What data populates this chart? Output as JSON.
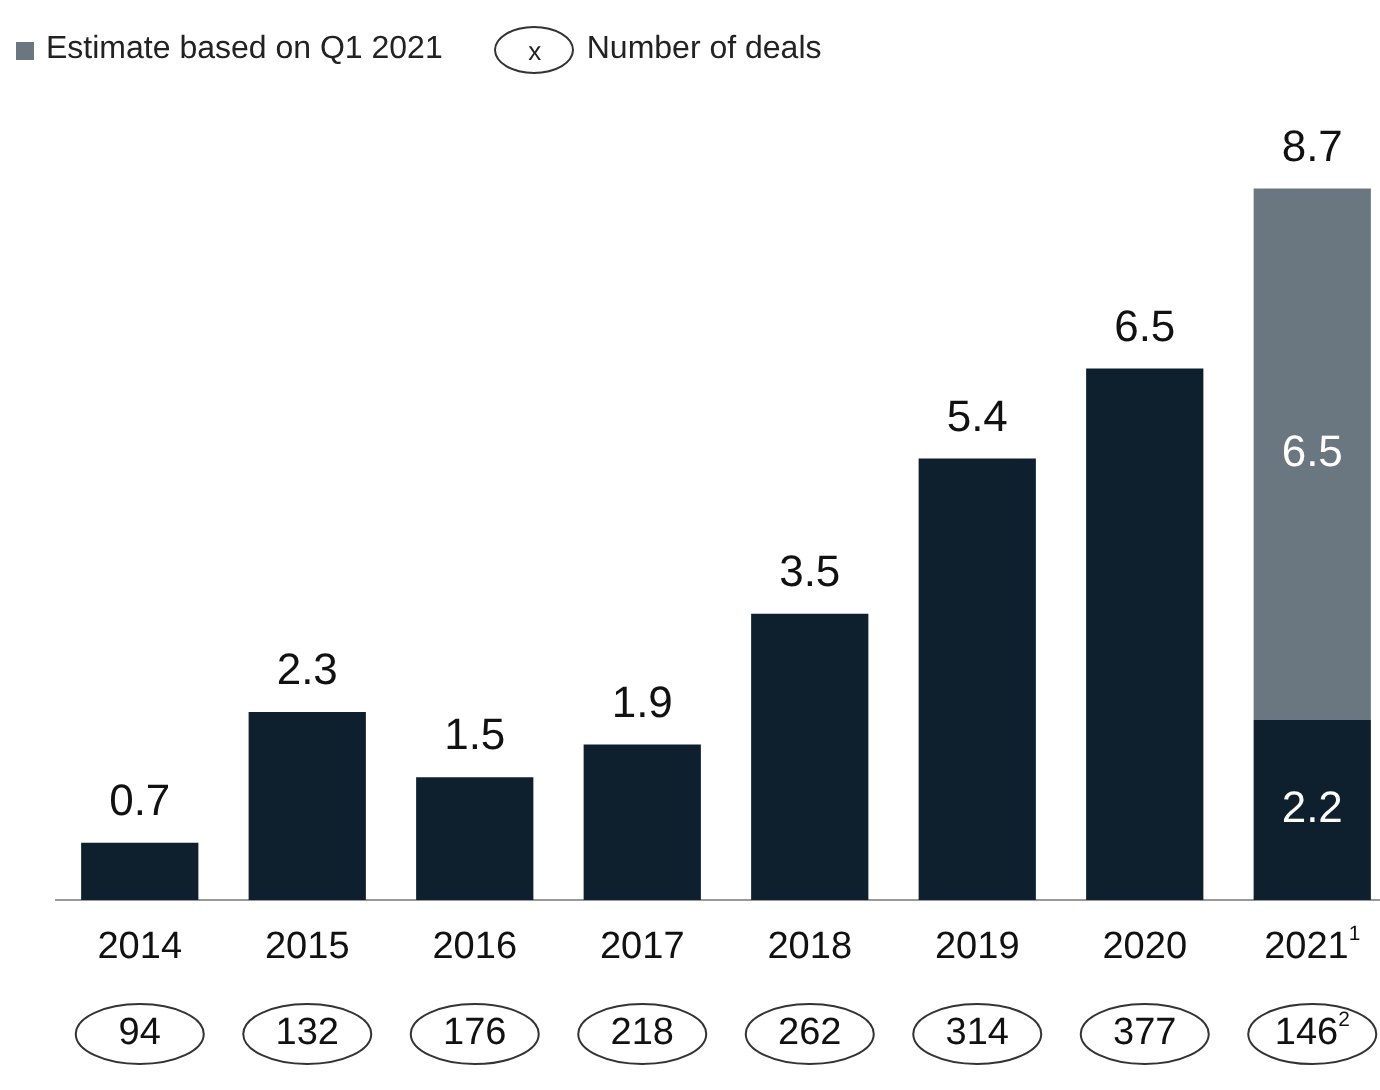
{
  "chart_data": {
    "type": "bar",
    "stacked": true,
    "categories": [
      "2014",
      "2015",
      "2016",
      "2017",
      "2018",
      "2019",
      "2020",
      "2021$^{1}$"
    ],
    "series": [
      {
        "color": "#0e1f2e",
        "values": [
          0.7,
          2.3,
          1.5,
          1.9,
          3.5,
          5.4,
          6.5,
          2.2
        ]
      },
      {
        "name": "Estimate based on Q1 2021",
        "color": "#6b7780",
        "values": [
          null,
          null,
          null,
          null,
          null,
          null,
          null,
          6.5
        ]
      }
    ],
    "data_labels": true,
    "totals": [
      null,
      null,
      null,
      null,
      null,
      null,
      null,
      "8.7"
    ],
    "grid": false,
    "legend": "top left",
    "annotations": [
      "x",
      "Number of deals",
      "94",
      "132",
      "176",
      "218",
      "262",
      "314",
      "377",
      "146$^{2}$"
    ]
  }
}
